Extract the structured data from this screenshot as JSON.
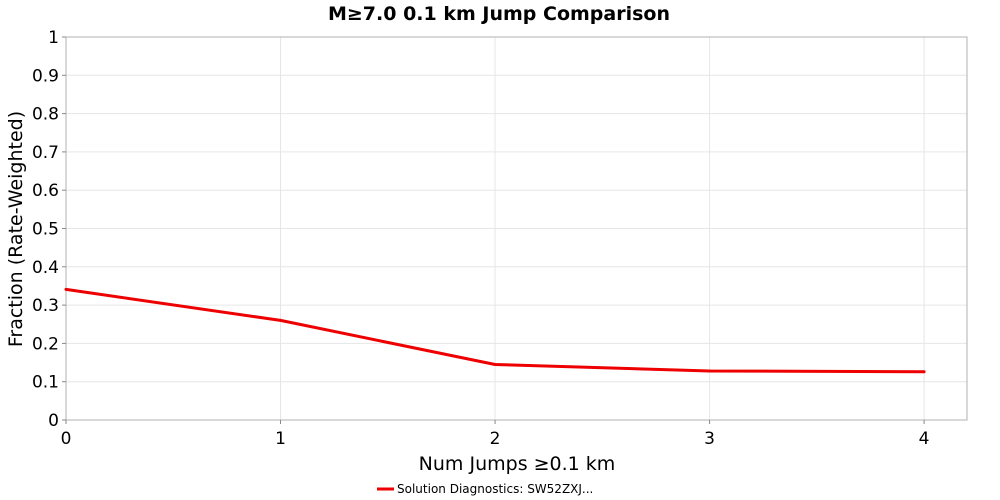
{
  "chart_data": {
    "type": "line",
    "title": "M≥7.0 0.1 km Jump Comparison",
    "xlabel": "Num Jumps ≥0.1 km",
    "ylabel": "Fraction (Rate-Weighted)",
    "xlim": [
      0,
      4.2
    ],
    "ylim": [
      0,
      1
    ],
    "x_ticks": [
      "0",
      "1",
      "2",
      "3",
      "4"
    ],
    "y_ticks": [
      "0",
      "0.1",
      "0.2",
      "0.3",
      "0.4",
      "0.5",
      "0.6",
      "0.7",
      "0.8",
      "0.9",
      "1"
    ],
    "grid": true,
    "legend_position": "bottom-center",
    "series": [
      {
        "name": "Solution Diagnostics: SW52ZXJ...",
        "color": "#ee0000",
        "x": [
          0,
          1,
          2,
          3,
          4
        ],
        "y": [
          0.341,
          0.26,
          0.145,
          0.128,
          0.126
        ]
      }
    ]
  }
}
